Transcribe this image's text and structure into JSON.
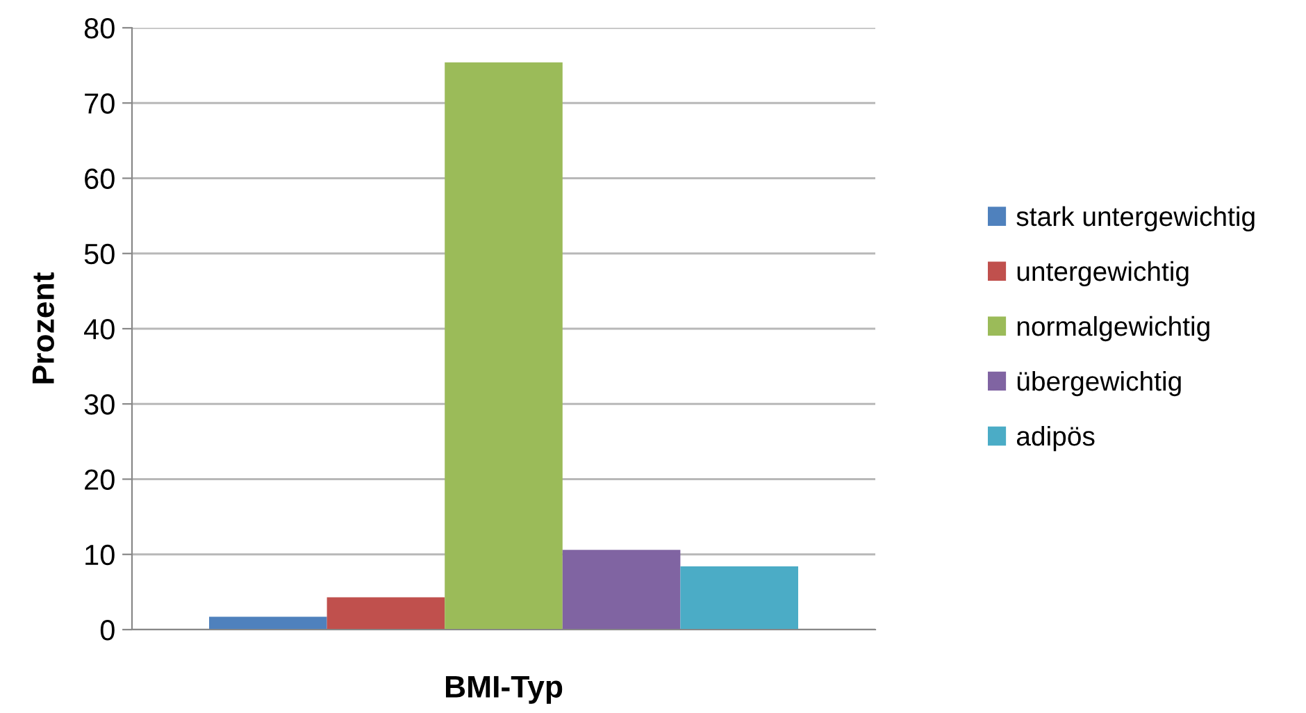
{
  "chart_data": {
    "type": "bar",
    "xlabel": "BMI-Typ",
    "ylabel": "Prozent",
    "categories": [
      null
    ],
    "series": [
      {
        "name": "stark untergewichtig",
        "color": "#4f81bd",
        "values": [
          1.7
        ]
      },
      {
        "name": "untergewichtig",
        "color": "#c0504d",
        "values": [
          4.3
        ]
      },
      {
        "name": "normalgewichtig",
        "color": "#9bbb59",
        "values": [
          75.4
        ]
      },
      {
        "name": "übergewichtig",
        "color": "#8064a2",
        "values": [
          10.6
        ]
      },
      {
        "name": "adipös",
        "color": "#4bacc6",
        "values": [
          8.4
        ]
      }
    ],
    "ylim": [
      0,
      80
    ],
    "yticks": [
      0,
      10,
      20,
      30,
      40,
      50,
      60,
      70,
      80
    ],
    "grid": "y",
    "legend": "right"
  }
}
